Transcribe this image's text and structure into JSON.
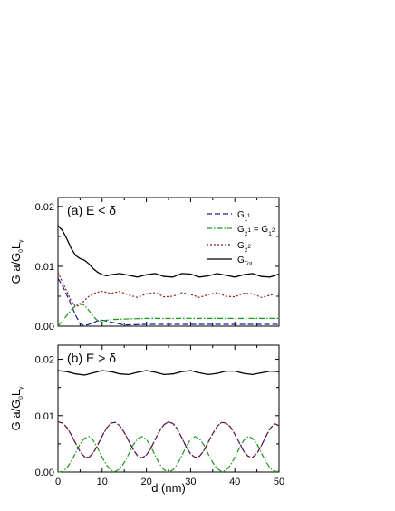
{
  "chart_data": [
    {
      "type": "line",
      "title": "(a) E < δ",
      "xlabel": "",
      "ylabel": "G a/G0Ly",
      "xlim": [
        0,
        50
      ],
      "ylim": [
        0,
        0.0215
      ],
      "yticks": [
        "0.00",
        "0.01",
        "0.02"
      ],
      "xticks": [
        "0",
        "10",
        "20",
        "30",
        "40",
        "50"
      ],
      "legend_position": "top-right",
      "colors": {
        "G11": "#1a1a9a",
        "G12": "#1a9a1a",
        "G22": "#8b1a1a",
        "GTot": "#000000"
      },
      "series": [
        {
          "name": "G11",
          "x": [
            0,
            1,
            2,
            3,
            4,
            5,
            6,
            7,
            8,
            9,
            10,
            15,
            20,
            25,
            30,
            35,
            40,
            45,
            50
          ],
          "values": [
            0.008,
            0.0068,
            0.0052,
            0.0036,
            0.0018,
            0.0004,
            0.0001,
            0.0003,
            0.0006,
            0.0009,
            0.001,
            0.0002,
            0.0003,
            0.0003,
            0.0003,
            0.0003,
            0.0003,
            0.0003,
            0.0003
          ]
        },
        {
          "name": "G21 = G12",
          "x": [
            0,
            1,
            2,
            3,
            4,
            5,
            6,
            7,
            8,
            9,
            10,
            12,
            15,
            20,
            25,
            30,
            35,
            40,
            45,
            50
          ],
          "values": [
            0.0,
            0.0009,
            0.0018,
            0.0027,
            0.0034,
            0.0038,
            0.0035,
            0.0026,
            0.0016,
            0.0009,
            0.0009,
            0.0011,
            0.0012,
            0.0013,
            0.0013,
            0.0013,
            0.0013,
            0.0013,
            0.0013,
            0.0013
          ]
        },
        {
          "name": "G22",
          "x": [
            0,
            1,
            2,
            3,
            4,
            5,
            6,
            7,
            8,
            9,
            10,
            12,
            14,
            16,
            18,
            20,
            22,
            24,
            26,
            28,
            30,
            32,
            34,
            36,
            38,
            40,
            42,
            44,
            46,
            48,
            50
          ],
          "values": [
            0.009,
            0.0074,
            0.0058,
            0.0042,
            0.0033,
            0.0035,
            0.0043,
            0.005,
            0.0054,
            0.0057,
            0.0058,
            0.0055,
            0.0058,
            0.0052,
            0.0048,
            0.0054,
            0.0056,
            0.0049,
            0.005,
            0.0056,
            0.0053,
            0.0048,
            0.0053,
            0.0056,
            0.005,
            0.0049,
            0.0055,
            0.0054,
            0.0048,
            0.0052,
            0.0055
          ]
        },
        {
          "name": "GTot",
          "x": [
            0,
            1,
            2,
            3,
            4,
            5,
            6,
            7,
            8,
            9,
            10,
            11,
            12,
            14,
            16,
            18,
            20,
            22,
            24,
            26,
            28,
            30,
            32,
            34,
            36,
            38,
            40,
            42,
            44,
            46,
            48,
            50
          ],
          "values": [
            0.0168,
            0.016,
            0.0146,
            0.013,
            0.0118,
            0.0113,
            0.011,
            0.0104,
            0.0096,
            0.009,
            0.0086,
            0.0084,
            0.0086,
            0.0088,
            0.0085,
            0.0082,
            0.0086,
            0.0088,
            0.0083,
            0.0082,
            0.0088,
            0.0087,
            0.0082,
            0.0084,
            0.0088,
            0.0085,
            0.0082,
            0.0086,
            0.0088,
            0.0083,
            0.0082,
            0.0087
          ]
        }
      ]
    },
    {
      "type": "line",
      "title": "(b) E > δ",
      "xlabel": "d (nm)",
      "ylabel": "G a/G0Ly",
      "xlim": [
        0,
        50
      ],
      "ylim": [
        0,
        0.0225
      ],
      "yticks": [
        "0.00",
        "0.01",
        "0.02"
      ],
      "xticks": [
        "0",
        "10",
        "20",
        "30",
        "40",
        "50"
      ],
      "series": [
        {
          "name": "G11",
          "x": [
            0,
            1,
            2,
            3,
            4,
            5,
            6,
            7,
            8,
            9,
            10,
            11,
            12,
            13,
            14,
            15,
            16,
            17,
            18,
            19,
            20,
            21,
            22,
            23,
            24,
            25,
            26,
            27,
            28,
            29,
            30,
            31,
            32,
            33,
            34,
            35,
            36,
            37,
            38,
            39,
            40,
            41,
            42,
            43,
            44,
            45,
            46,
            47,
            48,
            49,
            50
          ],
          "values": [
            0.0089,
            0.0087,
            0.0079,
            0.0066,
            0.0051,
            0.0036,
            0.0027,
            0.0026,
            0.0034,
            0.0048,
            0.0064,
            0.0078,
            0.0087,
            0.0088,
            0.0082,
            0.007,
            0.0055,
            0.004,
            0.0029,
            0.0025,
            0.003,
            0.0042,
            0.0058,
            0.0073,
            0.0084,
            0.0089,
            0.0086,
            0.0076,
            0.0061,
            0.0045,
            0.0032,
            0.0026,
            0.0028,
            0.0038,
            0.0053,
            0.0068,
            0.0081,
            0.0088,
            0.0087,
            0.008,
            0.0067,
            0.0052,
            0.0037,
            0.0028,
            0.0026,
            0.0033,
            0.0047,
            0.0063,
            0.0077,
            0.0086,
            0.0082
          ]
        },
        {
          "name": "G21 = G12",
          "x": [
            0,
            1,
            2,
            3,
            4,
            5,
            6,
            7,
            8,
            9,
            10,
            11,
            12,
            13,
            14,
            15,
            16,
            17,
            18,
            19,
            20,
            21,
            22,
            23,
            24,
            25,
            26,
            27,
            28,
            29,
            30,
            31,
            32,
            33,
            34,
            35,
            36,
            37,
            38,
            39,
            40,
            41,
            42,
            43,
            44,
            45,
            46,
            47,
            48,
            49,
            50
          ],
          "values": [
            0.0,
            0.0001,
            0.0007,
            0.0019,
            0.0034,
            0.005,
            0.006,
            0.0063,
            0.0056,
            0.0042,
            0.0026,
            0.0012,
            0.0003,
            0.0001,
            0.0006,
            0.0017,
            0.0032,
            0.0048,
            0.0059,
            0.0063,
            0.0058,
            0.0045,
            0.0029,
            0.0014,
            0.0004,
            0.0,
            0.0004,
            0.0014,
            0.0029,
            0.0045,
            0.0058,
            0.0063,
            0.0059,
            0.0048,
            0.0032,
            0.0017,
            0.0006,
            0.0001,
            0.0003,
            0.0012,
            0.0026,
            0.0042,
            0.0056,
            0.0063,
            0.006,
            0.005,
            0.0034,
            0.0019,
            0.0007,
            0.0001,
            0.0001
          ]
        },
        {
          "name": "G22",
          "x": [
            0,
            1,
            2,
            3,
            4,
            5,
            6,
            7,
            8,
            9,
            10,
            11,
            12,
            13,
            14,
            15,
            16,
            17,
            18,
            19,
            20,
            21,
            22,
            23,
            24,
            25,
            26,
            27,
            28,
            29,
            30,
            31,
            32,
            33,
            34,
            35,
            36,
            37,
            38,
            39,
            40,
            41,
            42,
            43,
            44,
            45,
            46,
            47,
            48,
            49,
            50
          ],
          "values": [
            0.0089,
            0.0087,
            0.0079,
            0.0066,
            0.0051,
            0.0036,
            0.0027,
            0.0026,
            0.0034,
            0.0048,
            0.0064,
            0.0078,
            0.0087,
            0.0088,
            0.0082,
            0.007,
            0.0055,
            0.004,
            0.0029,
            0.0025,
            0.003,
            0.0042,
            0.0058,
            0.0073,
            0.0084,
            0.0089,
            0.0086,
            0.0076,
            0.0061,
            0.0045,
            0.0032,
            0.0026,
            0.0028,
            0.0038,
            0.0053,
            0.0068,
            0.0081,
            0.0088,
            0.0087,
            0.008,
            0.0067,
            0.0052,
            0.0037,
            0.0028,
            0.0026,
            0.0033,
            0.0047,
            0.0063,
            0.0077,
            0.0086,
            0.0082
          ]
        },
        {
          "name": "GTot",
          "x": [
            0,
            2,
            4,
            6,
            8,
            10,
            12,
            14,
            16,
            18,
            20,
            22,
            24,
            26,
            28,
            30,
            32,
            34,
            36,
            38,
            40,
            42,
            44,
            46,
            48,
            50
          ],
          "values": [
            0.018,
            0.0178,
            0.0174,
            0.0172,
            0.0176,
            0.018,
            0.0178,
            0.0174,
            0.0173,
            0.0177,
            0.018,
            0.0177,
            0.0173,
            0.0174,
            0.0178,
            0.018,
            0.0176,
            0.0173,
            0.0175,
            0.0179,
            0.0179,
            0.0175,
            0.0173,
            0.0176,
            0.0179,
            0.0178
          ]
        }
      ]
    }
  ]
}
